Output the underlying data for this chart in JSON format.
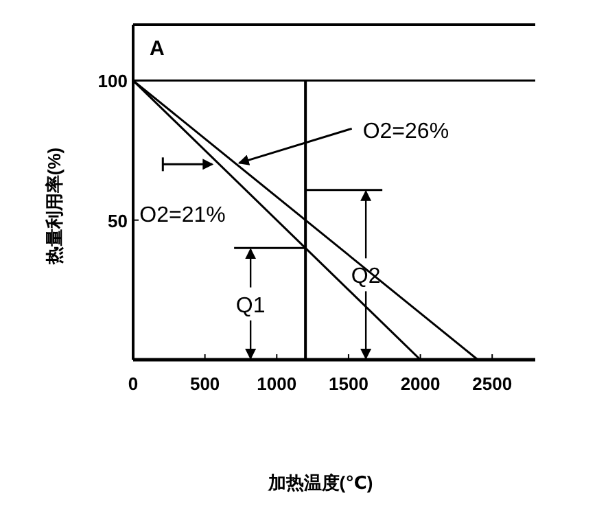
{
  "chart_data": {
    "type": "line",
    "xlabel": "加热温度(℃)",
    "ylabel": "热量利用率(%)",
    "series": [
      {
        "color": "#000000",
        "x": [
          0,
          2000
        ],
        "values": [
          100,
          0
        ]
      },
      {
        "color": "#000000",
        "x": [
          0,
          2400
        ],
        "values": [
          100,
          0
        ]
      }
    ],
    "xlim": [
      0,
      2800
    ],
    "ylim": [
      0,
      120
    ],
    "xticks": [
      0,
      500,
      1000,
      1500,
      2000,
      2500
    ],
    "yticks": [
      50,
      100
    ],
    "ref_lines": [
      {
        "axis": "x",
        "value": 1200,
        "color": "#000000"
      },
      {
        "axis": "y",
        "value": 100,
        "color": "#000000"
      }
    ],
    "annotations": [
      "A",
      {
        "text": "O2=26%",
        "x": 720,
        "y": 70
      },
      {
        "text": "O2=21%",
        "x": 570,
        "y": 70
      },
      "Q1",
      "Q2"
    ],
    "marker": "none",
    "line_style": "solid",
    "grid": false
  }
}
